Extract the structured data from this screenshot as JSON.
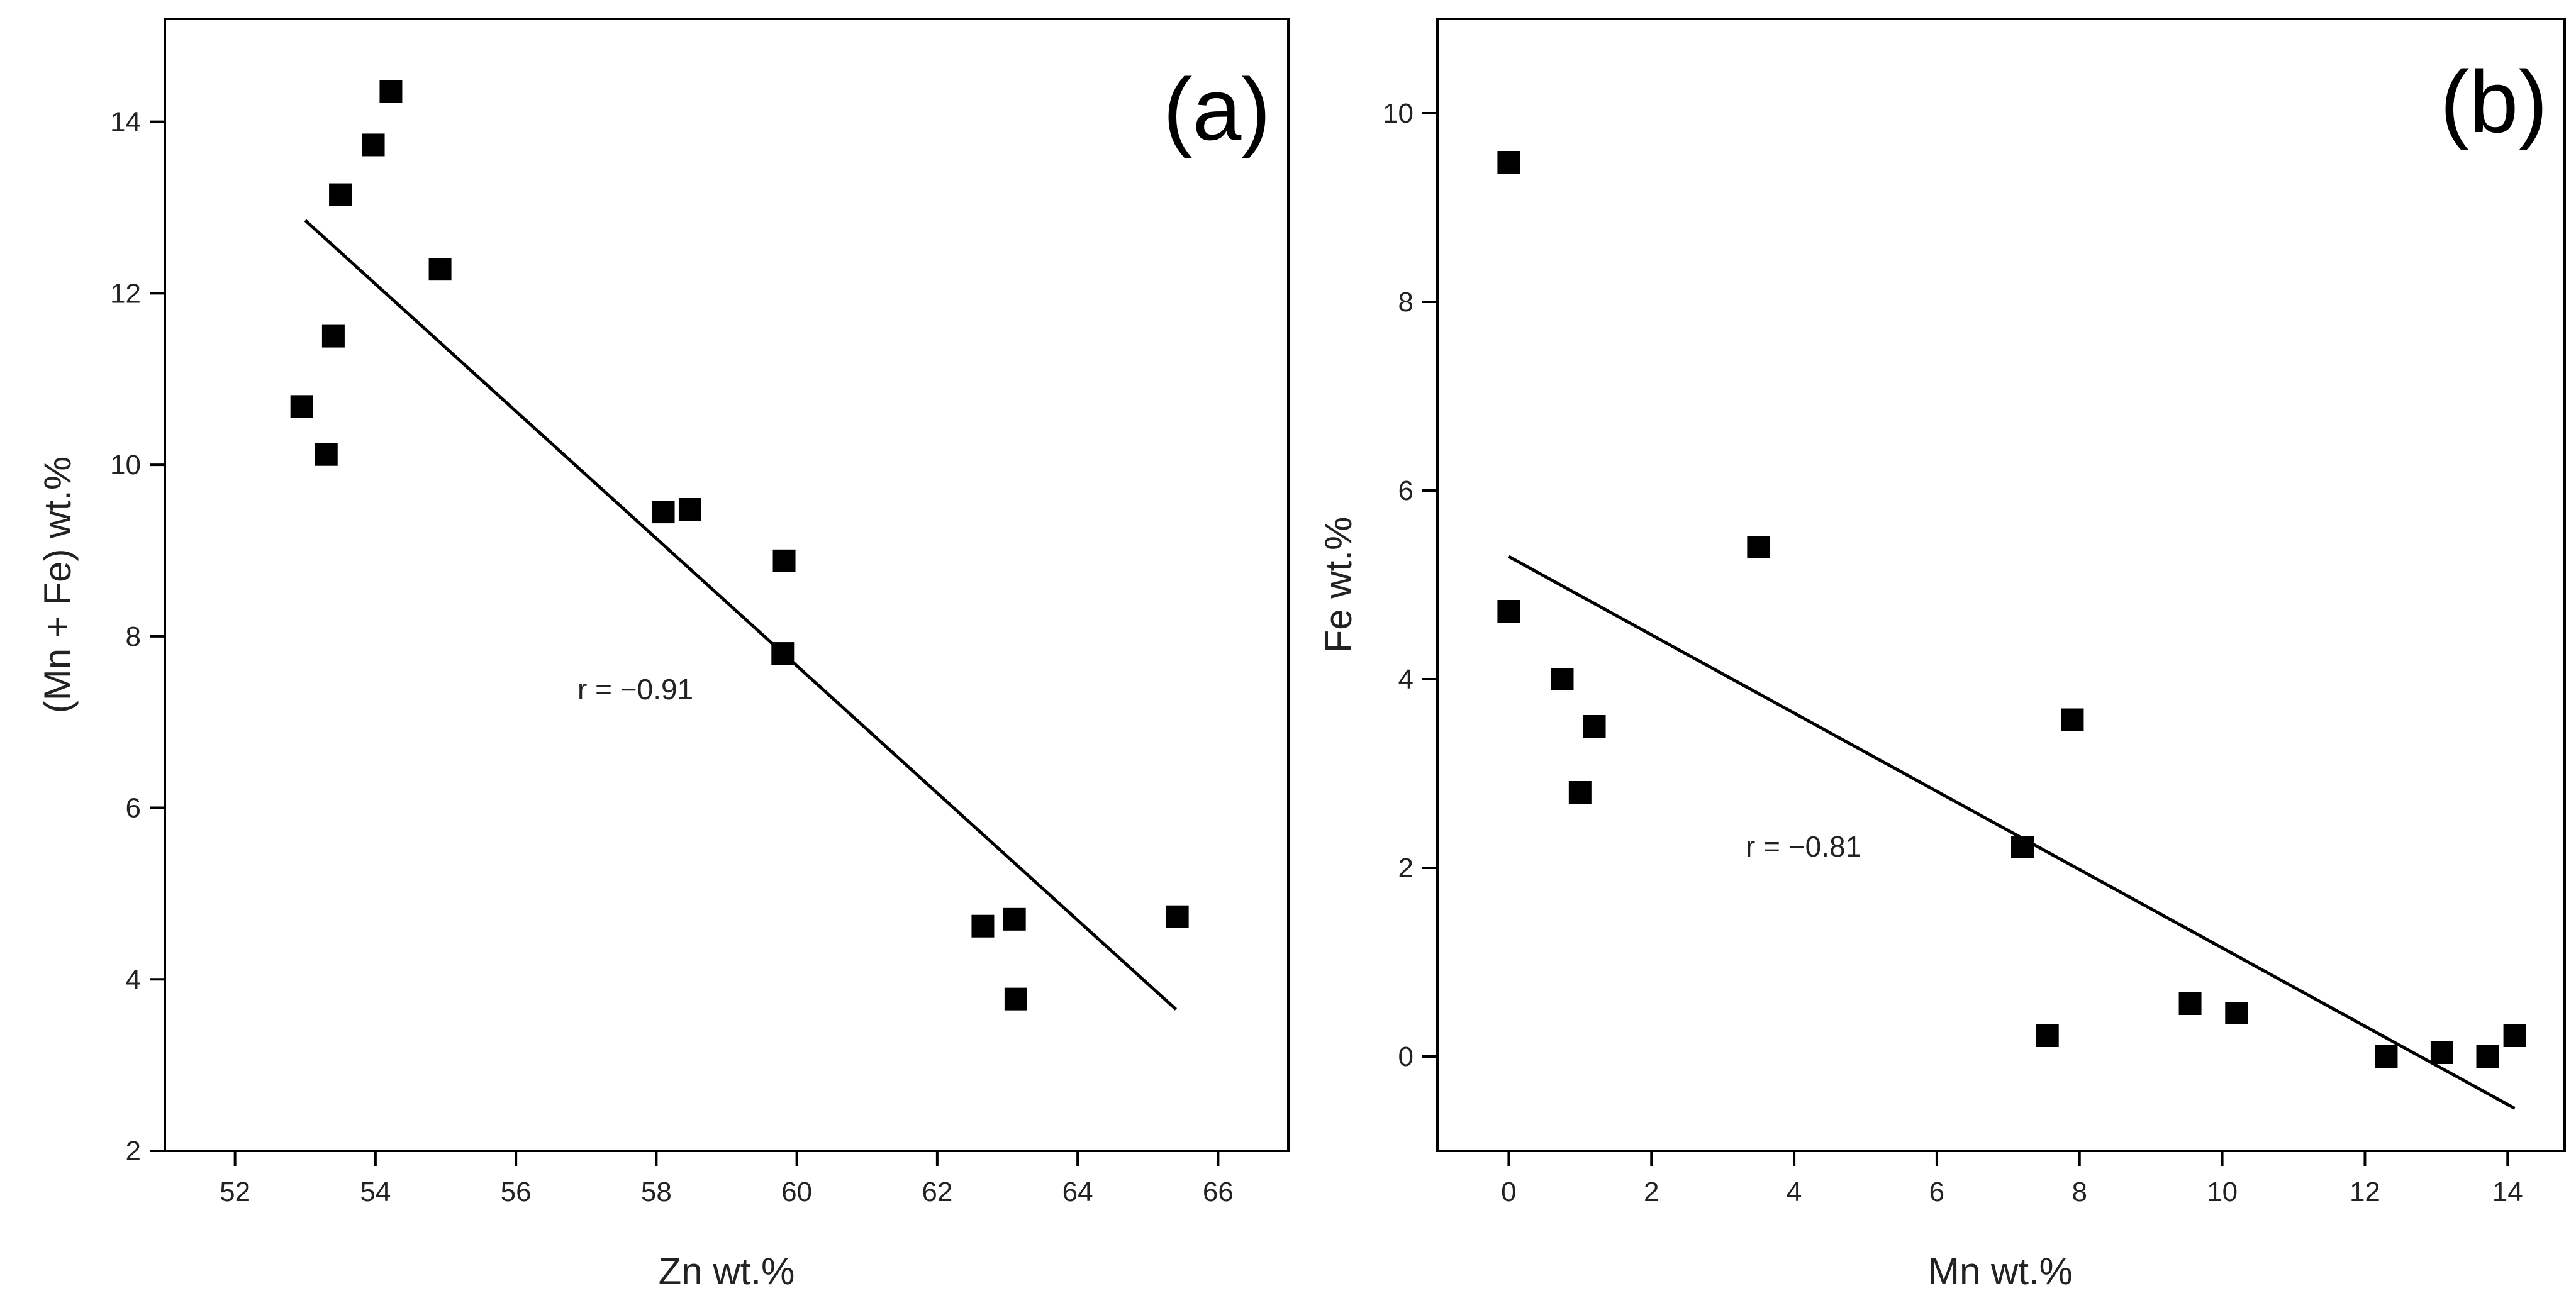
{
  "chart_data": [
    {
      "type": "scatter",
      "panel_label": "(a)",
      "xlabel": "Zn wt.%",
      "ylabel": "(Mn + Fe) wt.%",
      "xlim": [
        51,
        67
      ],
      "ylim": [
        2,
        15.2
      ],
      "xticks": [
        52,
        54,
        56,
        58,
        60,
        62,
        64,
        66
      ],
      "yticks": [
        2,
        4,
        6,
        8,
        10,
        12,
        14
      ],
      "annotation": "r = −0.91",
      "fit_line": {
        "x": [
          53.0,
          65.4
        ],
        "y": [
          12.85,
          3.65
        ]
      },
      "points": {
        "x": [
          52.95,
          53.3,
          53.4,
          53.5,
          53.97,
          54.22,
          54.92,
          58.1,
          58.48,
          59.82,
          59.8,
          62.65,
          63.1,
          63.12,
          65.42
        ],
        "y": [
          10.68,
          10.12,
          11.5,
          13.15,
          13.73,
          14.35,
          12.28,
          9.45,
          9.48,
          8.88,
          7.8,
          4.62,
          4.7,
          3.77,
          4.73
        ]
      }
    },
    {
      "type": "scatter",
      "panel_label": "(b)",
      "xlabel": "Mn wt.%",
      "ylabel": "Fe wt.%",
      "xlim": [
        -1,
        14.8
      ],
      "ylim": [
        -1,
        11
      ],
      "xticks": [
        0,
        2,
        4,
        6,
        8,
        10,
        12,
        14
      ],
      "yticks": [
        0,
        2,
        4,
        6,
        8,
        10
      ],
      "annotation": "r = −0.81",
      "fit_line": {
        "x": [
          0,
          14.1
        ],
        "y": [
          5.3,
          -0.55
        ]
      },
      "points": {
        "x": [
          0,
          0,
          0.75,
          1.2,
          1.0,
          3.5,
          7.2,
          7.55,
          7.9,
          9.55,
          10.2,
          12.3,
          13.08,
          13.72,
          14.1
        ],
        "y": [
          9.48,
          4.72,
          4.0,
          3.5,
          2.8,
          5.4,
          2.22,
          0.22,
          3.57,
          0.56,
          0.46,
          0.0,
          0.04,
          0.0,
          0.22
        ]
      }
    }
  ]
}
